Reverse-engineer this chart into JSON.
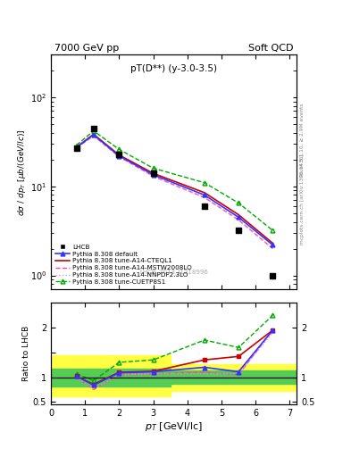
{
  "title_left": "7000 GeV pp",
  "title_right": "Soft QCD",
  "plot_title": "pT(D**) (y-3.0-3.5)",
  "watermark": "LHCB_2013_I1218996",
  "right_label_top": "Rivet 3.1.10, ≥ 2.9M events",
  "right_label_mid": "mcplots.cern.ch [arXiv:1306.3436]",
  "ylabel_main": "dσ / dp_T  [μb/(GeV/lc)]",
  "ylabel_ratio": "Ratio to LHCB",
  "xlabel": "p_T [GeVl/lc]",
  "pt_lhcb": [
    0.75,
    1.25,
    2.0,
    3.0,
    4.5,
    5.5,
    6.5
  ],
  "data_lhcb": [
    27.0,
    45.0,
    23.0,
    14.0,
    6.0,
    3.2,
    1.0
  ],
  "pt_mc": [
    0.75,
    1.25,
    2.0,
    3.0,
    4.5,
    5.5,
    6.5
  ],
  "pythia_default": [
    27.5,
    38.0,
    22.0,
    13.5,
    8.0,
    4.5,
    2.2
  ],
  "pythia_cteql1": [
    27.5,
    38.5,
    22.5,
    14.0,
    8.5,
    4.8,
    2.3
  ],
  "pythia_mstw": [
    27.0,
    37.0,
    21.5,
    13.0,
    7.5,
    4.2,
    2.0
  ],
  "pythia_nnpdf": [
    27.0,
    37.0,
    21.5,
    13.0,
    7.5,
    4.2,
    2.0
  ],
  "pythia_cuetp8s1": [
    29.0,
    42.0,
    26.0,
    16.0,
    11.0,
    6.5,
    3.2
  ],
  "ratio_default": [
    1.02,
    0.84,
    1.09,
    1.11,
    1.2,
    1.11,
    1.95
  ],
  "ratio_cteql1": [
    1.02,
    0.855,
    1.1,
    1.12,
    1.35,
    1.42,
    1.95
  ],
  "ratio_mstw": [
    1.0,
    0.75,
    1.05,
    1.07,
    1.1,
    1.05,
    1.95
  ],
  "ratio_nnpdf": [
    1.0,
    0.755,
    1.05,
    1.07,
    1.07,
    1.07,
    1.9
  ],
  "ratio_cuetp8s1": [
    1.07,
    0.93,
    1.3,
    1.35,
    1.75,
    1.6,
    2.25
  ],
  "yellow_band_x": [
    0.0,
    1.5,
    1.5,
    3.5,
    3.5,
    5.75,
    5.75,
    7.2
  ],
  "yellow_band_lo": [
    0.62,
    0.62,
    0.62,
    0.62,
    0.73,
    0.73,
    0.73,
    0.73
  ],
  "yellow_band_hi": [
    1.45,
    1.45,
    1.45,
    1.45,
    1.27,
    1.27,
    1.27,
    1.27
  ],
  "green_band_x": [
    0.0,
    1.5,
    1.5,
    3.5,
    3.5,
    5.75,
    5.75,
    7.2
  ],
  "green_band_lo": [
    0.82,
    0.82,
    0.82,
    0.82,
    0.87,
    0.87,
    0.87,
    0.87
  ],
  "green_band_hi": [
    1.18,
    1.18,
    1.18,
    1.18,
    1.13,
    1.13,
    1.13,
    1.13
  ],
  "color_default": "#3333ff",
  "color_cteql1": "#cc0000",
  "color_mstw": "#ff44aa",
  "color_nnpdf": "#dd99cc",
  "color_cuetp8s1": "#00aa00",
  "color_lhcb": "#000000",
  "ylim_main": [
    0.7,
    300
  ],
  "ylim_ratio": [
    0.45,
    2.5
  ],
  "xlim": [
    0.0,
    7.2
  ]
}
